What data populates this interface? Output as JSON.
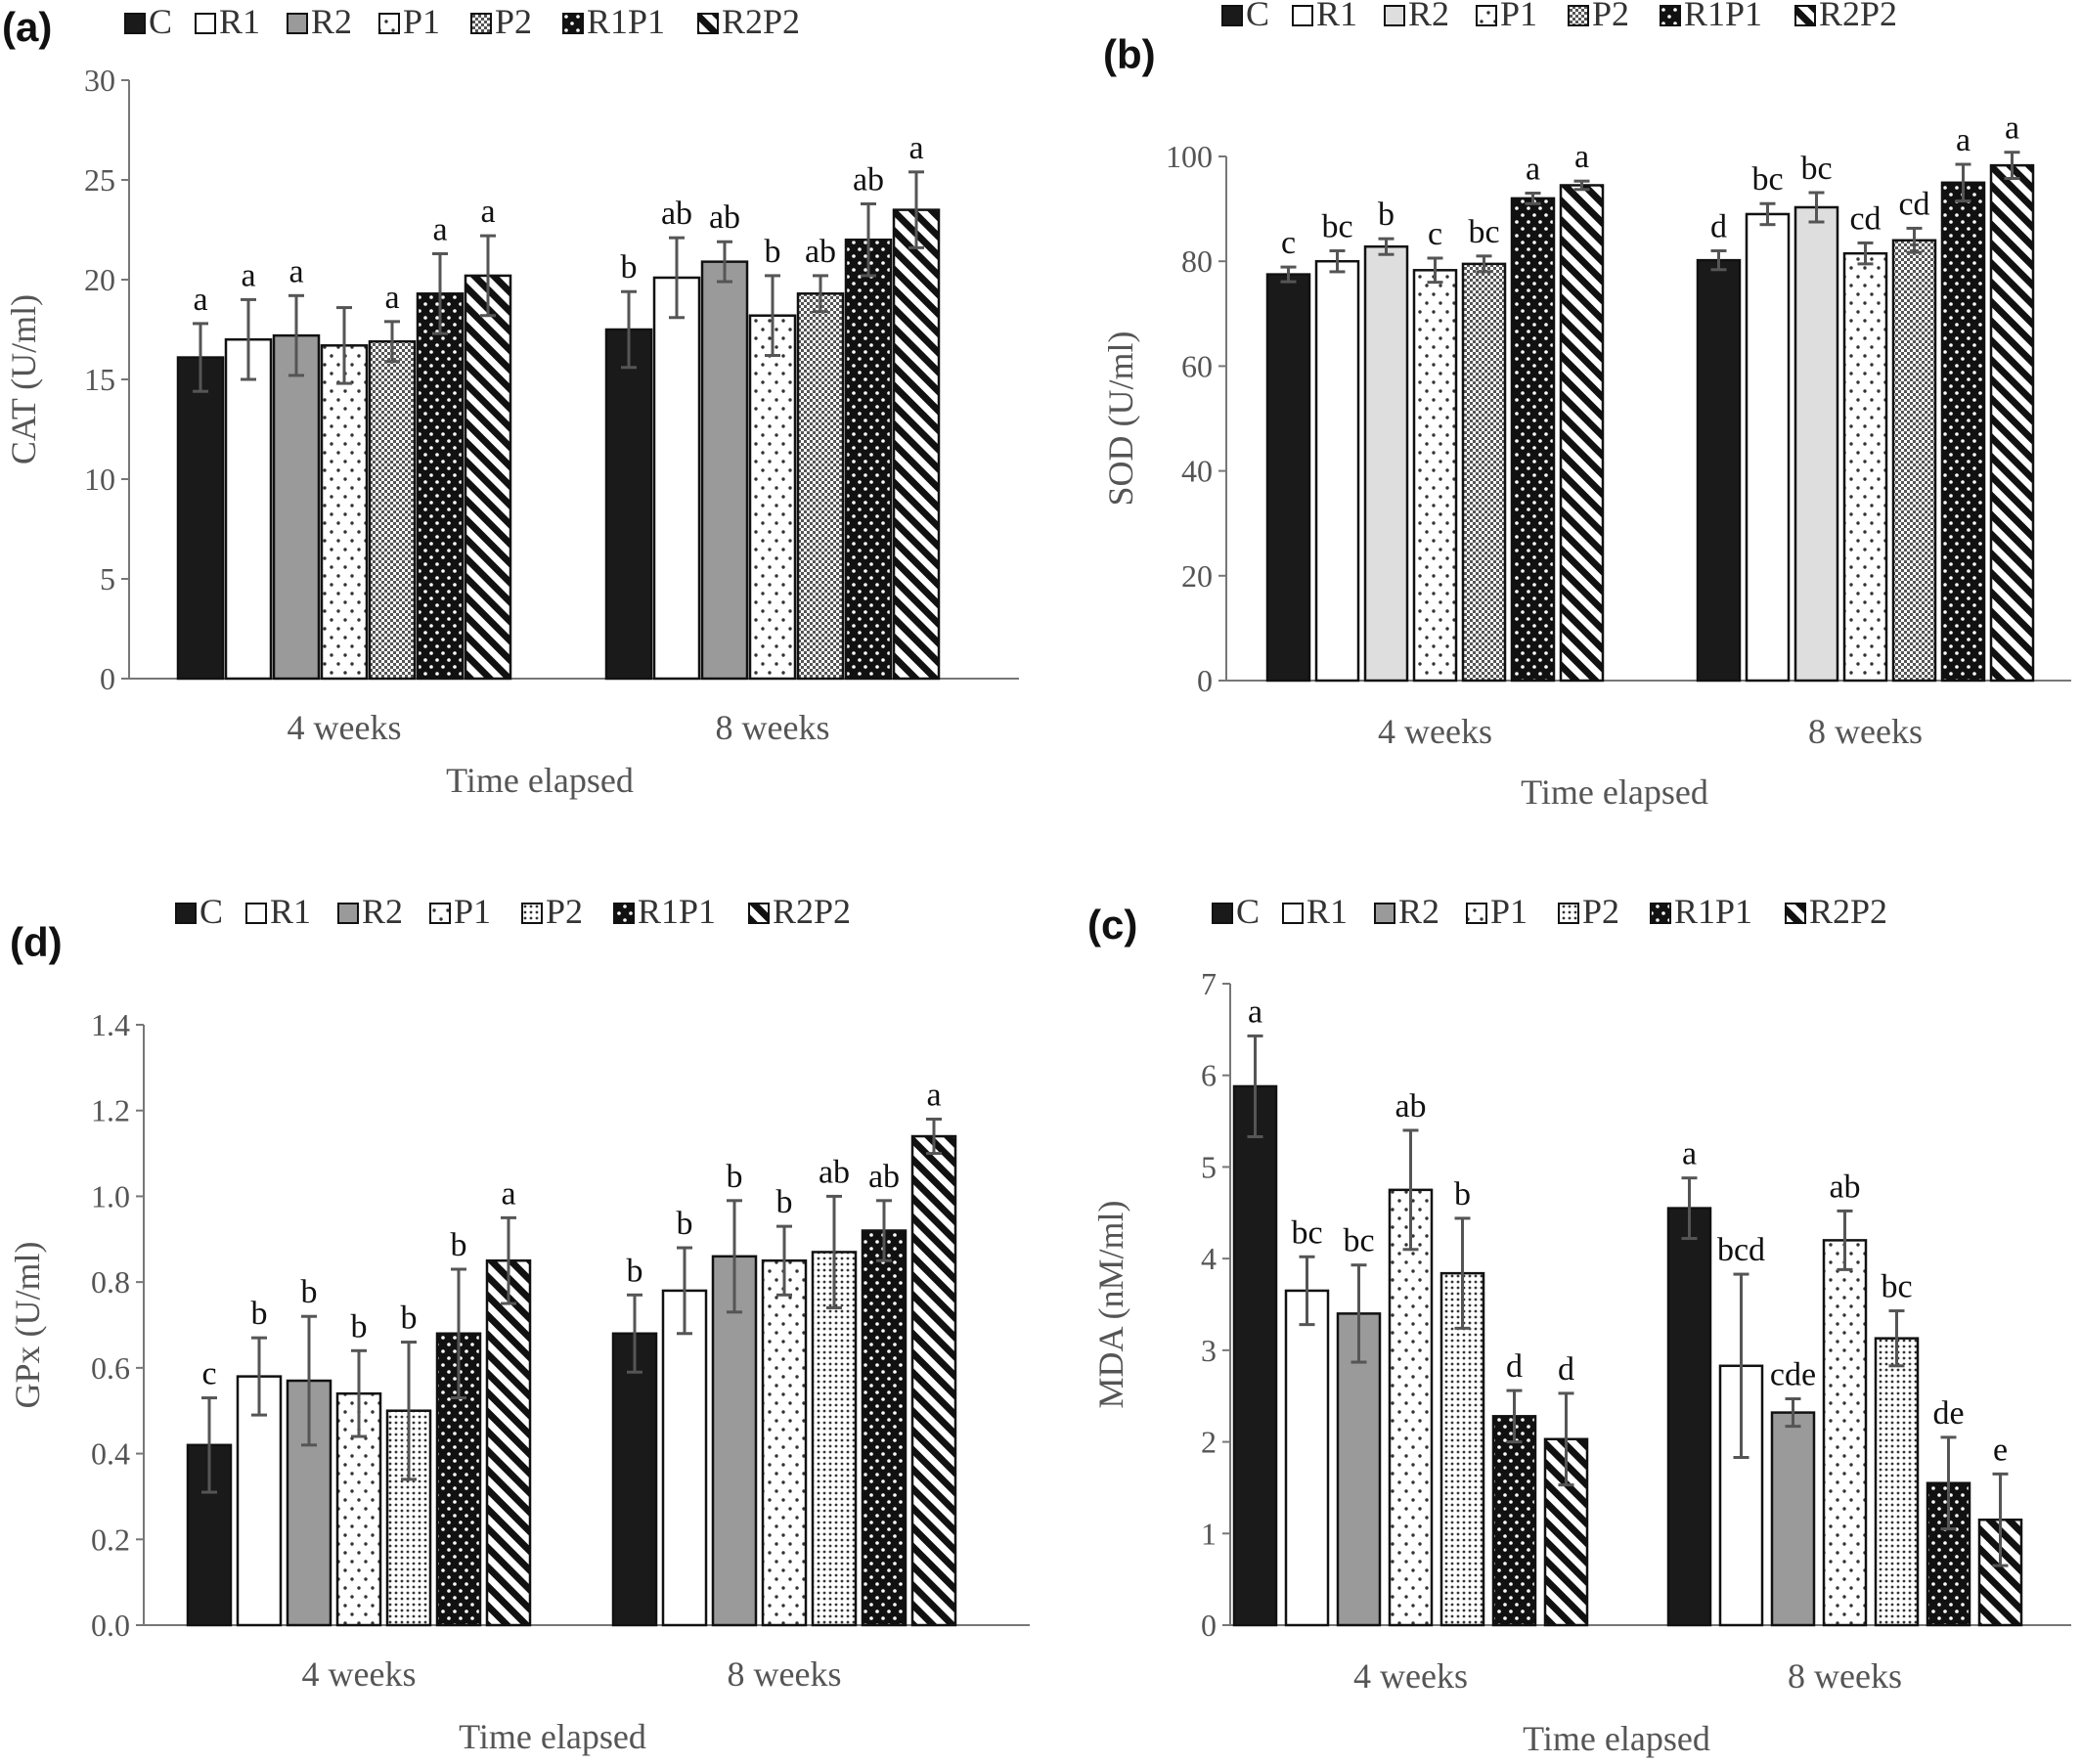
{
  "figure": {
    "panels": [
      {
        "id": "a",
        "letter": "(a)"
      },
      {
        "id": "b",
        "letter": "(b)"
      },
      {
        "id": "d",
        "letter": "(d)"
      },
      {
        "id": "c",
        "letter": "(c)"
      }
    ]
  },
  "styles": {
    "C": {
      "fill": "#1a1a1a",
      "pattern": "solid"
    },
    "R1": {
      "fill": "#ffffff",
      "pattern": "solid"
    },
    "R2": {
      "fill": "#9a9a9a",
      "pattern": "solid"
    },
    "R2_b": {
      "fill": "#dedede",
      "pattern": "solid"
    },
    "P1": {
      "fill": "#ffffff",
      "pattern": "dots-sparse"
    },
    "P2": {
      "fill": "#ffffff",
      "pattern": "checker"
    },
    "P2_d": {
      "fill": "#ffffff",
      "pattern": "dots-dense"
    },
    "R1P1": {
      "fill": "#111111",
      "pattern": "white-dots"
    },
    "R2P2": {
      "fill": "#ffffff",
      "pattern": "diagonal"
    }
  },
  "chart_data": [
    {
      "id": "a",
      "type": "bar",
      "title": "",
      "xlabel": "Time elapsed",
      "ylabel": "CAT (U/ml)",
      "ylim": [
        0,
        30
      ],
      "yticks": [
        "0",
        "5",
        "10",
        "15",
        "20",
        "25",
        "30"
      ],
      "categories": [
        "4 weeks",
        "8 weeks"
      ],
      "legend_position": "top",
      "grid": false,
      "series": [
        {
          "name": "C",
          "style": "C",
          "values": [
            16.1,
            17.5
          ],
          "errors": [
            1.7,
            1.9
          ],
          "labels": [
            "a",
            "b"
          ]
        },
        {
          "name": "R1",
          "style": "R1",
          "values": [
            17.0,
            20.1
          ],
          "errors": [
            2.0,
            2.0
          ],
          "labels": [
            "a",
            "ab"
          ]
        },
        {
          "name": "R2",
          "style": "R2",
          "values": [
            17.2,
            20.9
          ],
          "errors": [
            2.0,
            1.0
          ],
          "labels": [
            "a",
            "ab"
          ]
        },
        {
          "name": "P1",
          "style": "P1",
          "values": [
            16.7,
            18.2
          ],
          "errors": [
            1.9,
            2.0
          ],
          "labels": [
            "",
            "b"
          ]
        },
        {
          "name": "P2",
          "style": "P2",
          "values": [
            16.9,
            19.3
          ],
          "errors": [
            1.0,
            0.9
          ],
          "labels": [
            "a",
            "ab"
          ]
        },
        {
          "name": "R1P1",
          "style": "R1P1",
          "values": [
            19.3,
            22.0
          ],
          "errors": [
            2.0,
            1.8
          ],
          "labels": [
            "a",
            "ab"
          ]
        },
        {
          "name": "R2P2",
          "style": "R2P2",
          "values": [
            20.2,
            23.5
          ],
          "errors": [
            2.0,
            1.9
          ],
          "labels": [
            "a",
            "a"
          ]
        }
      ]
    },
    {
      "id": "b",
      "type": "bar",
      "title": "",
      "xlabel": "Time elapsed",
      "ylabel": "SOD (U/ml)",
      "ylim": [
        0,
        100
      ],
      "yticks": [
        "0",
        "20",
        "40",
        "60",
        "80",
        "100"
      ],
      "categories": [
        "4 weeks",
        "8 weeks"
      ],
      "legend_position": "top",
      "grid": false,
      "series": [
        {
          "name": "C",
          "style": "C",
          "values": [
            77.5,
            80.2
          ],
          "errors": [
            1.4,
            1.8
          ],
          "labels": [
            "c",
            "d"
          ]
        },
        {
          "name": "R1",
          "style": "R1",
          "values": [
            80.0,
            89.0
          ],
          "errors": [
            2.0,
            2.0
          ],
          "labels": [
            "bc",
            "bc"
          ]
        },
        {
          "name": "R2",
          "style": "R2_b",
          "values": [
            82.8,
            90.3
          ],
          "errors": [
            1.5,
            2.8
          ],
          "labels": [
            "b",
            "bc"
          ]
        },
        {
          "name": "P1",
          "style": "P1",
          "values": [
            78.3,
            81.5
          ],
          "errors": [
            2.3,
            2.0
          ],
          "labels": [
            "c",
            "cd"
          ]
        },
        {
          "name": "P2",
          "style": "P2",
          "values": [
            79.5,
            84.0
          ],
          "errors": [
            1.5,
            2.3
          ],
          "labels": [
            "bc",
            "cd"
          ]
        },
        {
          "name": "R1P1",
          "style": "R1P1",
          "values": [
            92.0,
            95.0
          ],
          "errors": [
            1.0,
            3.5
          ],
          "labels": [
            "a",
            "a"
          ]
        },
        {
          "name": "R2P2",
          "style": "R2P2",
          "values": [
            94.5,
            98.3
          ],
          "errors": [
            0.8,
            2.5
          ],
          "labels": [
            "a",
            "a"
          ]
        }
      ]
    },
    {
      "id": "d",
      "type": "bar",
      "title": "",
      "xlabel": "Time elapsed",
      "ylabel": "GPx (U/ml)",
      "ylim": [
        0,
        1.4
      ],
      "yticks": [
        "0.0",
        "0.2",
        "0.4",
        "0.6",
        "0.8",
        "1.0",
        "1.2",
        "1.4"
      ],
      "categories": [
        "4 weeks",
        "8 weeks"
      ],
      "legend_position": "top",
      "grid": false,
      "series": [
        {
          "name": "C",
          "style": "C",
          "values": [
            0.42,
            0.68
          ],
          "errors": [
            0.11,
            0.09
          ],
          "labels": [
            "c",
            "b"
          ]
        },
        {
          "name": "R1",
          "style": "R1",
          "values": [
            0.58,
            0.78
          ],
          "errors": [
            0.09,
            0.1
          ],
          "labels": [
            "b",
            "b"
          ]
        },
        {
          "name": "R2",
          "style": "R2",
          "values": [
            0.57,
            0.86
          ],
          "errors": [
            0.15,
            0.13
          ],
          "labels": [
            "b",
            "b"
          ]
        },
        {
          "name": "P1",
          "style": "P1",
          "values": [
            0.54,
            0.85
          ],
          "errors": [
            0.1,
            0.08
          ],
          "labels": [
            "b",
            "b"
          ]
        },
        {
          "name": "P2",
          "style": "P2_d",
          "values": [
            0.5,
            0.87
          ],
          "errors": [
            0.16,
            0.13
          ],
          "labels": [
            "b",
            "ab"
          ]
        },
        {
          "name": "R1P1",
          "style": "R1P1",
          "values": [
            0.68,
            0.92
          ],
          "errors": [
            0.15,
            0.07
          ],
          "labels": [
            "b",
            "ab"
          ]
        },
        {
          "name": "R2P2",
          "style": "R2P2",
          "values": [
            0.85,
            1.14
          ],
          "errors": [
            0.1,
            0.04
          ],
          "labels": [
            "a",
            "a"
          ]
        }
      ]
    },
    {
      "id": "c",
      "type": "bar",
      "title": "",
      "xlabel": "Time elapsed",
      "ylabel": "MDA (nM/ml)",
      "ylim": [
        0,
        7
      ],
      "yticks": [
        "0",
        "1",
        "2",
        "3",
        "4",
        "5",
        "6",
        "7"
      ],
      "categories": [
        "4 weeks",
        "8 weeks"
      ],
      "legend_position": "top",
      "grid": false,
      "series": [
        {
          "name": "C",
          "style": "C",
          "values": [
            5.88,
            4.55
          ],
          "errors": [
            0.55,
            0.33
          ],
          "labels": [
            "a",
            "a"
          ]
        },
        {
          "name": "R1",
          "style": "R1",
          "values": [
            3.65,
            2.83
          ],
          "errors": [
            0.37,
            1.0
          ],
          "labels": [
            "bc",
            "bcd"
          ]
        },
        {
          "name": "R2",
          "style": "R2",
          "values": [
            3.4,
            2.32
          ],
          "errors": [
            0.53,
            0.15
          ],
          "labels": [
            "bc",
            "cde"
          ]
        },
        {
          "name": "P1",
          "style": "P1",
          "values": [
            4.75,
            4.2
          ],
          "errors": [
            0.65,
            0.32
          ],
          "labels": [
            "ab",
            "ab"
          ]
        },
        {
          "name": "P2",
          "style": "P2_d",
          "values": [
            3.84,
            3.13
          ],
          "errors": [
            0.6,
            0.3
          ],
          "labels": [
            "b",
            "bc"
          ]
        },
        {
          "name": "R1P1",
          "style": "R1P1",
          "values": [
            2.28,
            1.55
          ],
          "errors": [
            0.28,
            0.5
          ],
          "labels": [
            "d",
            "de"
          ]
        },
        {
          "name": "R2P2",
          "style": "R2P2",
          "values": [
            2.03,
            1.15
          ],
          "errors": [
            0.5,
            0.5
          ],
          "labels": [
            "d",
            "e"
          ]
        }
      ]
    }
  ]
}
